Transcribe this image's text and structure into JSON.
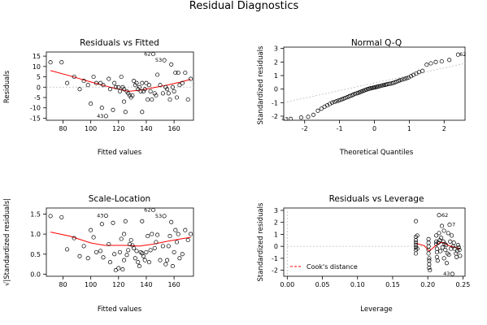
{
  "title": "Residual Diagnostics",
  "colors": {
    "points": "#000000",
    "smooth": "#ff0000",
    "reference": "#bdbdbd"
  },
  "chart_data": [
    {
      "type": "scatter",
      "title": "Residuals vs Fitted",
      "xlabel": "Fitted values",
      "ylabel": "Residuals",
      "xlim": [
        68,
        174
      ],
      "ylim": [
        -16,
        17
      ],
      "xticks": [
        80,
        100,
        120,
        140,
        160
      ],
      "yticks": [
        -15,
        -10,
        -5,
        0,
        5,
        10,
        15
      ],
      "points": [
        [
          71,
          12
        ],
        [
          79,
          12
        ],
        [
          83,
          2
        ],
        [
          88,
          5
        ],
        [
          92,
          -1
        ],
        [
          95,
          3
        ],
        [
          98,
          1
        ],
        [
          100,
          -8
        ],
        [
          102,
          5
        ],
        [
          104,
          2
        ],
        [
          107,
          2
        ],
        [
          108,
          -10
        ],
        [
          109,
          1
        ],
        [
          111,
          -14
        ],
        [
          113,
          4
        ],
        [
          114,
          -1
        ],
        [
          116,
          -11
        ],
        [
          117,
          2
        ],
        [
          118,
          0
        ],
        [
          120,
          0
        ],
        [
          121,
          -2
        ],
        [
          122,
          5
        ],
        [
          123,
          0
        ],
        [
          124,
          -1
        ],
        [
          124,
          -7
        ],
        [
          125,
          -12
        ],
        [
          126,
          -2
        ],
        [
          127,
          -3
        ],
        [
          128,
          -4
        ],
        [
          129,
          -5
        ],
        [
          130,
          -4
        ],
        [
          131,
          3
        ],
        [
          132,
          1
        ],
        [
          133,
          2
        ],
        [
          134,
          -1
        ],
        [
          135,
          0
        ],
        [
          136,
          -2
        ],
        [
          137,
          -12
        ],
        [
          137,
          2
        ],
        [
          138,
          -2
        ],
        [
          139,
          -1
        ],
        [
          140,
          2
        ],
        [
          141,
          -6
        ],
        [
          142,
          1
        ],
        [
          143,
          -2
        ],
        [
          144,
          -6
        ],
        [
          145,
          16
        ],
        [
          146,
          -3
        ],
        [
          147,
          -4
        ],
        [
          148,
          6
        ],
        [
          150,
          1
        ],
        [
          152,
          -3
        ],
        [
          153,
          13
        ],
        [
          154,
          0
        ],
        [
          155,
          -1
        ],
        [
          156,
          -3
        ],
        [
          157,
          -6
        ],
        [
          158,
          11
        ],
        [
          159,
          0
        ],
        [
          160,
          -2
        ],
        [
          161,
          7
        ],
        [
          162,
          -5
        ],
        [
          163,
          7
        ],
        [
          164,
          1
        ],
        [
          166,
          2
        ],
        [
          168,
          7
        ],
        [
          170,
          -6
        ],
        [
          172,
          4
        ]
      ],
      "labeled_points": [
        {
          "label": "62",
          "x": 145,
          "y": 16
        },
        {
          "label": "53",
          "x": 153,
          "y": 13
        },
        {
          "label": "43",
          "x": 111,
          "y": -14
        }
      ],
      "smooth_line": [
        [
          71,
          8
        ],
        [
          85,
          5.5
        ],
        [
          100,
          2.5
        ],
        [
          115,
          -0.2
        ],
        [
          127,
          -2
        ],
        [
          135,
          -1.5
        ],
        [
          145,
          -0.3
        ],
        [
          155,
          1
        ],
        [
          165,
          2.5
        ],
        [
          172,
          3.8
        ]
      ],
      "reference_line": {
        "y": 0
      }
    },
    {
      "type": "scatter",
      "title": "Normal Q-Q",
      "xlabel": "Theoretical Quantiles",
      "ylabel": "Standardized residuals",
      "xlim": [
        -2.6,
        2.6
      ],
      "ylim": [
        -2.3,
        3.1
      ],
      "xticks": [
        -2,
        -1,
        0,
        1,
        2
      ],
      "yticks": [
        -2,
        -1,
        0,
        1,
        2,
        3
      ],
      "points": [
        [
          -2.4,
          -2.2
        ],
        [
          -2.1,
          -2.1
        ],
        [
          -1.9,
          -2.05
        ],
        [
          -1.75,
          -1.9
        ],
        [
          -1.62,
          -1.6
        ],
        [
          -1.52,
          -1.45
        ],
        [
          -1.43,
          -1.3
        ],
        [
          -1.35,
          -1.2
        ],
        [
          -1.28,
          -1.1
        ],
        [
          -1.21,
          -1.0
        ],
        [
          -1.15,
          -0.95
        ],
        [
          -1.09,
          -0.9
        ],
        [
          -1.03,
          -0.85
        ],
        [
          -0.98,
          -0.8
        ],
        [
          -0.93,
          -0.75
        ],
        [
          -0.88,
          -0.7
        ],
        [
          -0.83,
          -0.65
        ],
        [
          -0.78,
          -0.6
        ],
        [
          -0.73,
          -0.55
        ],
        [
          -0.69,
          -0.5
        ],
        [
          -0.64,
          -0.45
        ],
        [
          -0.6,
          -0.4
        ],
        [
          -0.56,
          -0.35
        ],
        [
          -0.51,
          -0.32
        ],
        [
          -0.47,
          -0.28
        ],
        [
          -0.43,
          -0.25
        ],
        [
          -0.39,
          -0.2
        ],
        [
          -0.35,
          -0.16
        ],
        [
          -0.31,
          -0.12
        ],
        [
          -0.27,
          -0.08
        ],
        [
          -0.23,
          -0.04
        ],
        [
          -0.19,
          0.0
        ],
        [
          -0.15,
          0.03
        ],
        [
          -0.11,
          0.06
        ],
        [
          -0.07,
          0.08
        ],
        [
          -0.03,
          0.1
        ],
        [
          0.0,
          0.12
        ],
        [
          0.04,
          0.14
        ],
        [
          0.08,
          0.17
        ],
        [
          0.12,
          0.2
        ],
        [
          0.16,
          0.22
        ],
        [
          0.2,
          0.25
        ],
        [
          0.24,
          0.28
        ],
        [
          0.28,
          0.3
        ],
        [
          0.32,
          0.32
        ],
        [
          0.36,
          0.35
        ],
        [
          0.41,
          0.38
        ],
        [
          0.45,
          0.4
        ],
        [
          0.5,
          0.42
        ],
        [
          0.54,
          0.46
        ],
        [
          0.59,
          0.5
        ],
        [
          0.64,
          0.55
        ],
        [
          0.69,
          0.6
        ],
        [
          0.74,
          0.65
        ],
        [
          0.8,
          0.7
        ],
        [
          0.86,
          0.75
        ],
        [
          0.92,
          0.8
        ],
        [
          0.98,
          0.85
        ],
        [
          1.05,
          0.95
        ],
        [
          1.12,
          1.05
        ],
        [
          1.2,
          1.15
        ],
        [
          1.28,
          1.25
        ],
        [
          1.38,
          1.35
        ],
        [
          1.5,
          1.8
        ],
        [
          1.62,
          1.9
        ],
        [
          1.76,
          2.0
        ],
        [
          1.93,
          2.05
        ],
        [
          2.15,
          2.15
        ],
        [
          2.4,
          2.55
        ]
      ],
      "labeled_points": [
        {
          "label": "62",
          "x": 2.4,
          "y": 2.55
        },
        {
          "label": "43",
          "x": -2.4,
          "y": -2.2
        }
      ],
      "reference_line": {
        "from": [
          -2.6,
          -1.0
        ],
        "to": [
          2.6,
          1.9
        ]
      }
    },
    {
      "type": "scatter",
      "title": "Scale-Location",
      "xlabel": "Fitted values",
      "ylabel": "√|Standardized residuals|",
      "xlim": [
        68,
        174
      ],
      "ylim": [
        -0.05,
        1.65
      ],
      "xticks": [
        80,
        100,
        120,
        140,
        160
      ],
      "yticks": [
        0.0,
        0.5,
        1.0,
        1.5
      ],
      "points": [
        [
          71,
          1.45
        ],
        [
          79,
          1.42
        ],
        [
          83,
          0.62
        ],
        [
          88,
          0.9
        ],
        [
          92,
          0.45
        ],
        [
          95,
          0.7
        ],
        [
          98,
          0.4
        ],
        [
          100,
          1.1
        ],
        [
          102,
          0.92
        ],
        [
          104,
          0.55
        ],
        [
          107,
          0.58
        ],
        [
          108,
          1.25
        ],
        [
          109,
          0.42
        ],
        [
          111,
          1.46
        ],
        [
          113,
          0.75
        ],
        [
          114,
          0.3
        ],
        [
          116,
          1.28
        ],
        [
          117,
          0.5
        ],
        [
          118,
          0.1
        ],
        [
          120,
          0.15
        ],
        [
          121,
          0.55
        ],
        [
          122,
          0.88
        ],
        [
          123,
          0.12
        ],
        [
          124,
          0.35
        ],
        [
          124,
          1.0
        ],
        [
          125,
          1.32
        ],
        [
          126,
          0.48
        ],
        [
          127,
          0.6
        ],
        [
          128,
          0.75
        ],
        [
          129,
          0.85
        ],
        [
          130,
          0.72
        ],
        [
          131,
          0.65
        ],
        [
          132,
          0.4
        ],
        [
          133,
          0.58
        ],
        [
          134,
          0.3
        ],
        [
          135,
          0.2
        ],
        [
          136,
          0.55
        ],
        [
          137,
          1.32
        ],
        [
          137,
          0.52
        ],
        [
          138,
          0.45
        ],
        [
          139,
          0.35
        ],
        [
          140,
          0.55
        ],
        [
          141,
          0.95
        ],
        [
          142,
          0.3
        ],
        [
          143,
          0.6
        ],
        [
          144,
          1.0
        ],
        [
          145,
          1.6
        ],
        [
          146,
          0.65
        ],
        [
          147,
          0.8
        ],
        [
          148,
          0.98
        ],
        [
          150,
          0.35
        ],
        [
          152,
          0.7
        ],
        [
          153,
          1.45
        ],
        [
          154,
          0.25
        ],
        [
          155,
          0.35
        ],
        [
          156,
          0.7
        ],
        [
          157,
          0.95
        ],
        [
          158,
          1.3
        ],
        [
          159,
          0.2
        ],
        [
          160,
          0.55
        ],
        [
          161,
          1.1
        ],
        [
          162,
          0.8
        ],
        [
          163,
          1.0
        ],
        [
          164,
          0.4
        ],
        [
          166,
          0.5
        ],
        [
          168,
          1.1
        ],
        [
          170,
          0.85
        ],
        [
          172,
          1.0
        ]
      ],
      "labeled_points": [
        {
          "label": "43",
          "x": 111,
          "y": 1.46
        },
        {
          "label": "62",
          "x": 145,
          "y": 1.6
        },
        {
          "label": "53",
          "x": 153,
          "y": 1.45
        }
      ],
      "smooth_line": [
        [
          71,
          1.05
        ],
        [
          85,
          0.95
        ],
        [
          100,
          0.78
        ],
        [
          110,
          0.72
        ],
        [
          125,
          0.72
        ],
        [
          135,
          0.7
        ],
        [
          145,
          0.75
        ],
        [
          155,
          0.82
        ],
        [
          165,
          0.88
        ],
        [
          172,
          0.92
        ]
      ]
    },
    {
      "type": "scatter",
      "title": "Residuals vs Leverage",
      "xlabel": "Leverage",
      "ylabel": "Standardized residuals",
      "xlim": [
        -0.005,
        0.253
      ],
      "ylim": [
        -2.5,
        3.2
      ],
      "xticks": [
        0.0,
        0.05,
        0.1,
        0.15,
        0.2,
        0.25
      ],
      "yticks": [
        -2,
        -1,
        0,
        1,
        2,
        3
      ],
      "legend": {
        "label": "Cook's distance",
        "position": "bottom-left"
      },
      "points": [
        [
          0.183,
          2.1
        ],
        [
          0.183,
          0.8
        ],
        [
          0.183,
          0.5
        ],
        [
          0.183,
          0.3
        ],
        [
          0.183,
          0.1
        ],
        [
          0.183,
          -0.1
        ],
        [
          0.183,
          -0.3
        ],
        [
          0.183,
          -0.6
        ],
        [
          0.185,
          0.9
        ],
        [
          0.185,
          -0.2
        ],
        [
          0.201,
          0.6
        ],
        [
          0.201,
          0.3
        ],
        [
          0.201,
          0.0
        ],
        [
          0.201,
          -0.3
        ],
        [
          0.201,
          -0.6
        ],
        [
          0.202,
          -1.0
        ],
        [
          0.202,
          -1.2
        ],
        [
          0.202,
          -1.5
        ],
        [
          0.202,
          -1.8
        ],
        [
          0.203,
          -2.0
        ],
        [
          0.212,
          0.9
        ],
        [
          0.212,
          0.4
        ],
        [
          0.212,
          0.2
        ],
        [
          0.213,
          -0.2
        ],
        [
          0.213,
          -0.5
        ],
        [
          0.213,
          -0.9
        ],
        [
          0.214,
          -1.2
        ],
        [
          0.215,
          0.3
        ],
        [
          0.216,
          1.1
        ],
        [
          0.216,
          2.6
        ],
        [
          0.217,
          0.5
        ],
        [
          0.218,
          -0.4
        ],
        [
          0.219,
          0.7
        ],
        [
          0.22,
          1.7
        ],
        [
          0.221,
          -0.1
        ],
        [
          0.222,
          0.4
        ],
        [
          0.223,
          1.3
        ],
        [
          0.223,
          -1.0
        ],
        [
          0.224,
          0.2
        ],
        [
          0.225,
          -0.3
        ],
        [
          0.226,
          0.1
        ],
        [
          0.227,
          -1.4
        ],
        [
          0.228,
          -0.6
        ],
        [
          0.229,
          1.1
        ],
        [
          0.23,
          -0.7
        ],
        [
          0.231,
          1.8
        ],
        [
          0.232,
          0.4
        ],
        [
          0.233,
          -0.2
        ],
        [
          0.234,
          0.9
        ],
        [
          0.235,
          -2.3
        ],
        [
          0.236,
          0.0
        ],
        [
          0.237,
          0.3
        ],
        [
          0.238,
          -0.2
        ],
        [
          0.24,
          -0.6
        ],
        [
          0.241,
          -0.9
        ],
        [
          0.242,
          -0.4
        ],
        [
          0.243,
          0.1
        ],
        [
          0.244,
          -0.1
        ],
        [
          0.245,
          -0.3
        ],
        [
          0.246,
          -0.8
        ]
      ],
      "labeled_points": [
        {
          "label": "62",
          "x": 0.216,
          "y": 2.6
        },
        {
          "label": "7",
          "x": 0.231,
          "y": 1.8
        },
        {
          "label": "43",
          "x": 0.235,
          "y": -2.3
        }
      ],
      "smooth_line": [
        [
          0.183,
          0.25
        ],
        [
          0.195,
          0.05
        ],
        [
          0.202,
          -0.4
        ],
        [
          0.212,
          0.1
        ],
        [
          0.22,
          0.35
        ],
        [
          0.23,
          0.05
        ],
        [
          0.24,
          -0.1
        ],
        [
          0.246,
          -0.2
        ]
      ],
      "reference_line": {
        "y": 0
      }
    }
  ]
}
